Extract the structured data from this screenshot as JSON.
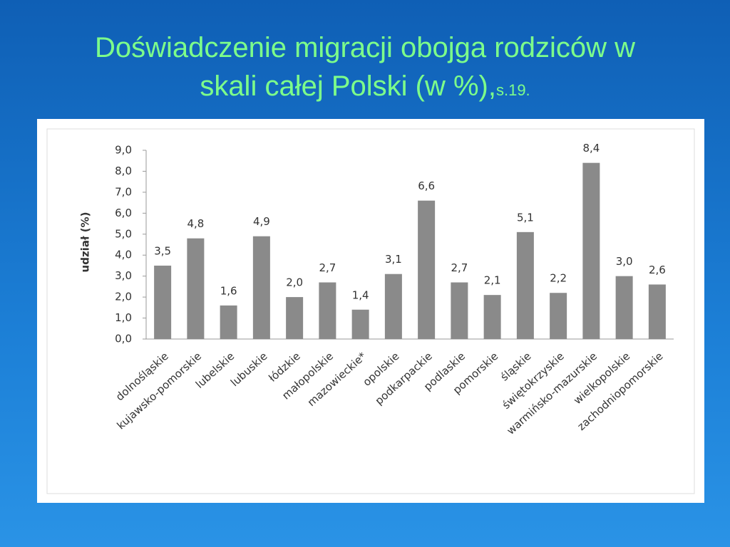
{
  "slide": {
    "title_lines": [
      "Doświadczenie migracji obojga rodziców w",
      "skali całej Polski (w %),"
    ],
    "page_ref": "s.19."
  },
  "chart_data": {
    "type": "bar",
    "y_label": "udział (%)",
    "categories": [
      "dolnośląskie",
      "kujawsko-pomorskie",
      "lubelskie",
      "lubuskie",
      "łódzkie",
      "małopolskie",
      "mazowieckie*",
      "opolskie",
      "podkarpackie",
      "podlaskie",
      "pomorskie",
      "śląskie",
      "świętokrzyskie",
      "warmińsko-mazurskie",
      "wielkopolskie",
      "zachodniopomorskie"
    ],
    "values": [
      3.5,
      4.8,
      1.6,
      4.9,
      2.0,
      2.7,
      1.4,
      3.1,
      6.6,
      2.7,
      2.1,
      5.1,
      2.2,
      8.4,
      3.0,
      2.6
    ],
    "value_labels": [
      "3,5",
      "4,8",
      "1,6",
      "4,9",
      "2,0",
      "2,7",
      "1,4",
      "3,1",
      "6,6",
      "2,7",
      "2,1",
      "5,1",
      "2,2",
      "8,4",
      "3,0",
      "2,6"
    ],
    "color": "#8a8a8a",
    "ylim": [
      0,
      9
    ],
    "yticks": [
      {
        "value": 0,
        "label": "0,0"
      },
      {
        "value": 1,
        "label": "1,0"
      },
      {
        "value": 2,
        "label": "2,0"
      },
      {
        "value": 3,
        "label": "3,0"
      },
      {
        "value": 4,
        "label": "4,0"
      },
      {
        "value": 5,
        "label": "5,0"
      },
      {
        "value": 6,
        "label": "6,0"
      },
      {
        "value": 7,
        "label": "7,0"
      },
      {
        "value": 8,
        "label": "8,0"
      },
      {
        "value": 9,
        "label": "9,0"
      }
    ],
    "grid": false
  }
}
